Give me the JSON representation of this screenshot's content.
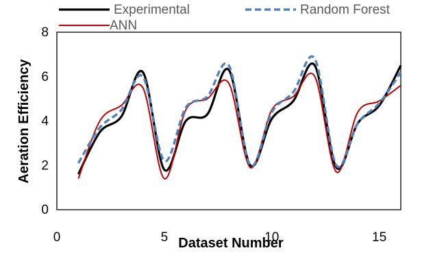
{
  "chart_data": {
    "type": "line",
    "title": "",
    "xlabel": "Dataset Number",
    "ylabel": "Aeration  Efficiency",
    "xlim": [
      0,
      16
    ],
    "ylim": [
      0,
      8
    ],
    "x_ticks": [
      0,
      5,
      10,
      15
    ],
    "y_ticks": [
      0,
      2,
      4,
      6,
      8
    ],
    "grid": false,
    "smooth": true,
    "legend_position": "top",
    "x": [
      1,
      2,
      3,
      4,
      5,
      6,
      7,
      8,
      9,
      10,
      11,
      12,
      13,
      14,
      15,
      16
    ],
    "series": [
      {
        "name": "Experimental",
        "color": "#000000",
        "style": "solid",
        "values": [
          1.6,
          3.5,
          4.2,
          6.2,
          1.8,
          4.0,
          4.3,
          6.3,
          2.0,
          4.1,
          4.9,
          6.5,
          1.9,
          3.9,
          4.7,
          6.5
        ]
      },
      {
        "name": "Random Forest",
        "color": "#4F81BD",
        "style": "dashed",
        "values": [
          2.1,
          3.7,
          4.5,
          6.0,
          2.2,
          4.6,
          5.1,
          6.5,
          2.0,
          4.4,
          5.3,
          6.8,
          2.0,
          3.9,
          4.8,
          6.2
        ]
      },
      {
        "name": "ANN",
        "color": "#C00000",
        "style": "solid",
        "values": [
          1.4,
          4.0,
          4.7,
          5.5,
          1.4,
          4.5,
          5.0,
          5.7,
          1.9,
          4.5,
          5.1,
          6.0,
          1.7,
          4.4,
          4.9,
          5.6
        ]
      }
    ]
  }
}
